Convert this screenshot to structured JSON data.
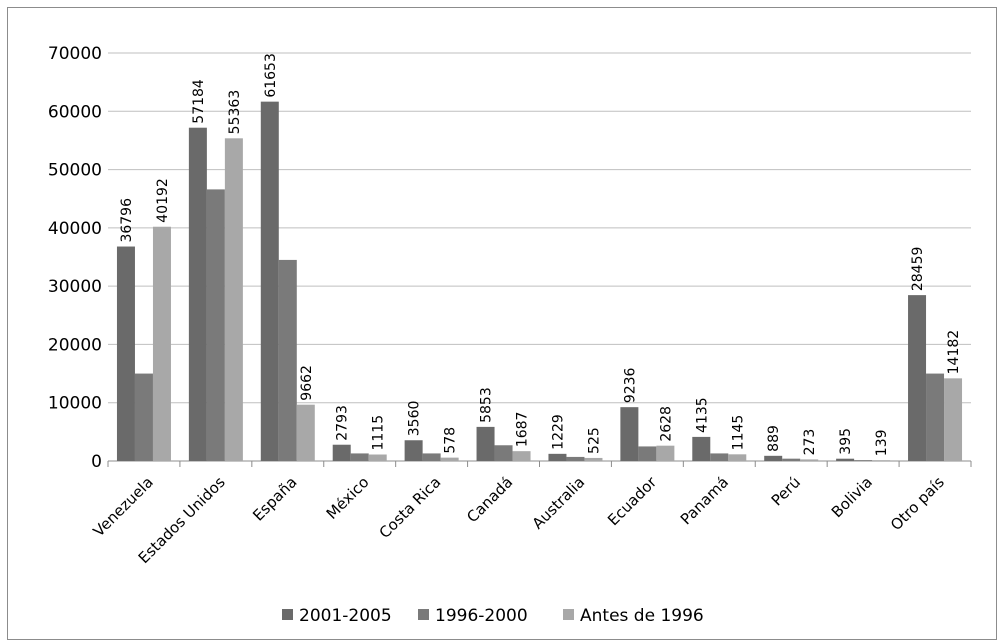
{
  "chart_data": {
    "type": "bar",
    "title": "",
    "xlabel": "",
    "ylabel": "",
    "ylim": [
      0,
      70000
    ],
    "yticks": [
      0,
      10000,
      20000,
      30000,
      40000,
      50000,
      60000,
      70000
    ],
    "grid": true,
    "legend_position": "bottom",
    "categories": [
      "Venezuela",
      "Estados Unidos",
      "España",
      "México",
      "Costa Rica",
      "Canadá",
      "Australia",
      "Ecuador",
      "Panamá",
      "Perú",
      "Bolivia",
      "Otro país"
    ],
    "series": [
      {
        "name": "2001-2005",
        "color": "#6a6a6a",
        "values": [
          36796,
          57184,
          61653,
          2793,
          3560,
          5853,
          1229,
          9236,
          4135,
          889,
          395,
          28459
        ],
        "labels": [
          "36796",
          "57184",
          "61653",
          "2793",
          "3560",
          "5853",
          "1229",
          "9236",
          "4135",
          "889",
          "395",
          "28459"
        ]
      },
      {
        "name": "1996-2000",
        "color": "#7a7a7a",
        "values": [
          15000,
          46600,
          34500,
          1300,
          1300,
          2700,
          700,
          2500,
          1300,
          400,
          150,
          15000
        ],
        "labels": [
          "",
          "",
          "",
          "",
          "",
          "",
          "",
          "",
          "",
          "",
          "",
          ""
        ]
      },
      {
        "name": "Antes de 1996",
        "color": "#a8a8a8",
        "values": [
          40192,
          55363,
          9662,
          1115,
          578,
          1687,
          525,
          2628,
          1145,
          273,
          139,
          14182
        ],
        "labels": [
          "40192",
          "55363",
          "9662",
          "1115",
          "578",
          "1687",
          "525",
          "2628",
          "1145",
          "273",
          "139",
          "14182"
        ]
      }
    ]
  }
}
